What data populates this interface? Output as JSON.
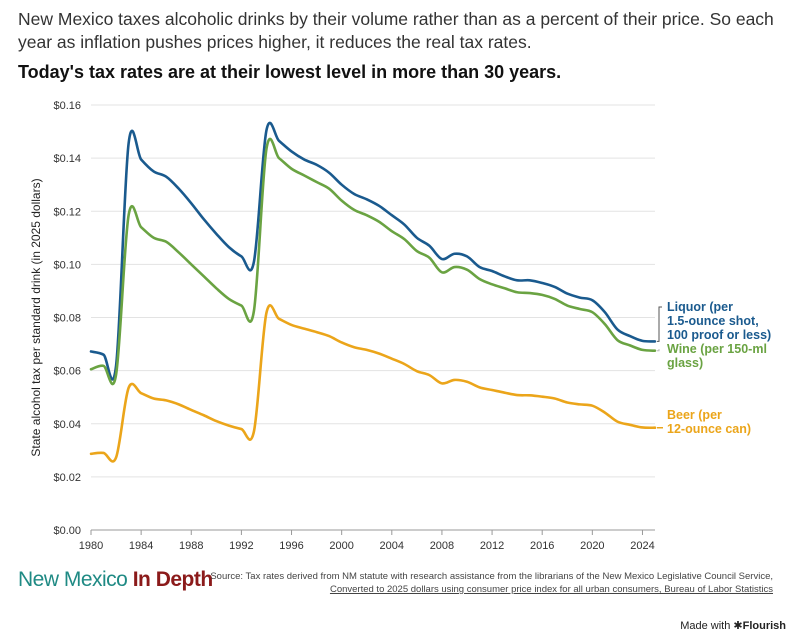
{
  "header": {
    "subtitle": "New Mexico taxes alcoholic drinks by their volume rather than as a percent of their price. So each year as inflation pushes prices higher, it reduces the real tax rates.",
    "headline": "Today's tax rates are at their lowest level in more than 30 years."
  },
  "chart_data": {
    "type": "line",
    "title": "Today's tax rates are at their lowest level in more than 30 years.",
    "xlabel": "",
    "ylabel": "State alcohol tax per standard drink (in 2025 dollars)",
    "xlim": [
      1980,
      2025
    ],
    "ylim": [
      0,
      0.16
    ],
    "x_ticks": [
      "1980",
      "1984",
      "1988",
      "1992",
      "1996",
      "2000",
      "2004",
      "2008",
      "2012",
      "2016",
      "2020",
      "2024"
    ],
    "y_ticks": [
      "$0.00",
      "$0.02",
      "$0.04",
      "$0.06",
      "$0.08",
      "$0.10",
      "$0.12",
      "$0.14",
      "$0.16"
    ],
    "x": [
      1980,
      1981,
      1982,
      1983,
      1984,
      1985,
      1986,
      1987,
      1988,
      1989,
      1990,
      1991,
      1992,
      1993,
      1994,
      1995,
      1996,
      1997,
      1998,
      1999,
      2000,
      2001,
      2002,
      2003,
      2004,
      2005,
      2006,
      2007,
      2008,
      2009,
      2010,
      2011,
      2012,
      2013,
      2014,
      2015,
      2016,
      2017,
      2018,
      2019,
      2020,
      2021,
      2022,
      2023,
      2024,
      2025
    ],
    "series": [
      {
        "name": "Liquor",
        "label_lines": [
          "Liquor (per",
          "1.5-ounce shot,",
          "100 proof or less)"
        ],
        "color": "#1a5a8e",
        "values": [
          0.0672,
          0.066,
          0.0618,
          0.1455,
          0.1395,
          0.135,
          0.133,
          0.1285,
          0.123,
          0.117,
          0.1115,
          0.1065,
          0.103,
          0.101,
          0.1505,
          0.1465,
          0.1425,
          0.1395,
          0.1375,
          0.1345,
          0.13,
          0.1265,
          0.1245,
          0.122,
          0.1185,
          0.115,
          0.11,
          0.107,
          0.102,
          0.104,
          0.103,
          0.099,
          0.0975,
          0.0955,
          0.094,
          0.094,
          0.093,
          0.0915,
          0.089,
          0.0875,
          0.0865,
          0.082,
          0.0755,
          0.073,
          0.0712,
          0.071
        ]
      },
      {
        "name": "Wine",
        "label_lines": [
          "Wine (per 150-ml",
          "glass)"
        ],
        "color": "#6aa342",
        "values": [
          0.0605,
          0.0618,
          0.0585,
          0.1185,
          0.114,
          0.11,
          0.1085,
          0.1045,
          0.1,
          0.0955,
          0.091,
          0.087,
          0.0845,
          0.0825,
          0.1435,
          0.14,
          0.136,
          0.1335,
          0.131,
          0.1285,
          0.124,
          0.1205,
          0.1185,
          0.116,
          0.1125,
          0.1095,
          0.105,
          0.1025,
          0.097,
          0.099,
          0.098,
          0.0945,
          0.0925,
          0.091,
          0.0895,
          0.0892,
          0.0885,
          0.087,
          0.0845,
          0.0832,
          0.082,
          0.0775,
          0.0715,
          0.0695,
          0.0678,
          0.0675
        ]
      },
      {
        "name": "Beer",
        "label_lines": [
          "Beer (per",
          "12-ounce can)"
        ],
        "color": "#eba51a",
        "values": [
          0.0287,
          0.029,
          0.0273,
          0.0535,
          0.0515,
          0.0495,
          0.0488,
          0.0473,
          0.0452,
          0.0432,
          0.041,
          0.0393,
          0.038,
          0.0371,
          0.0818,
          0.0795,
          0.0772,
          0.0758,
          0.0745,
          0.073,
          0.0706,
          0.0688,
          0.0678,
          0.0664,
          0.0645,
          0.0625,
          0.0598,
          0.0583,
          0.0552,
          0.0565,
          0.0558,
          0.0537,
          0.0527,
          0.0517,
          0.0508,
          0.0507,
          0.0502,
          0.0495,
          0.048,
          0.0473,
          0.0468,
          0.0442,
          0.0408,
          0.0396,
          0.0386,
          0.0385
        ]
      }
    ]
  },
  "footer": {
    "logo_part1": "New Mexico",
    "logo_part2": "In Depth",
    "source_text": "Source: Tax rates derived from NM statute with research assistance from the librarians of the New Mexico Legislative Council Service, ",
    "source_link": "Converted to 2025 dollars using consumer price index for all urban consumers, Bureau of Labor Statistics",
    "made_with_prefix": "Made with ",
    "made_with_brand": "✱Flourish"
  },
  "colors": {
    "liquor": "#1a5a8e",
    "wine": "#6aa342",
    "beer": "#eba51a",
    "logo_teal": "#1f8a84",
    "logo_red": "#8b1a1a"
  }
}
